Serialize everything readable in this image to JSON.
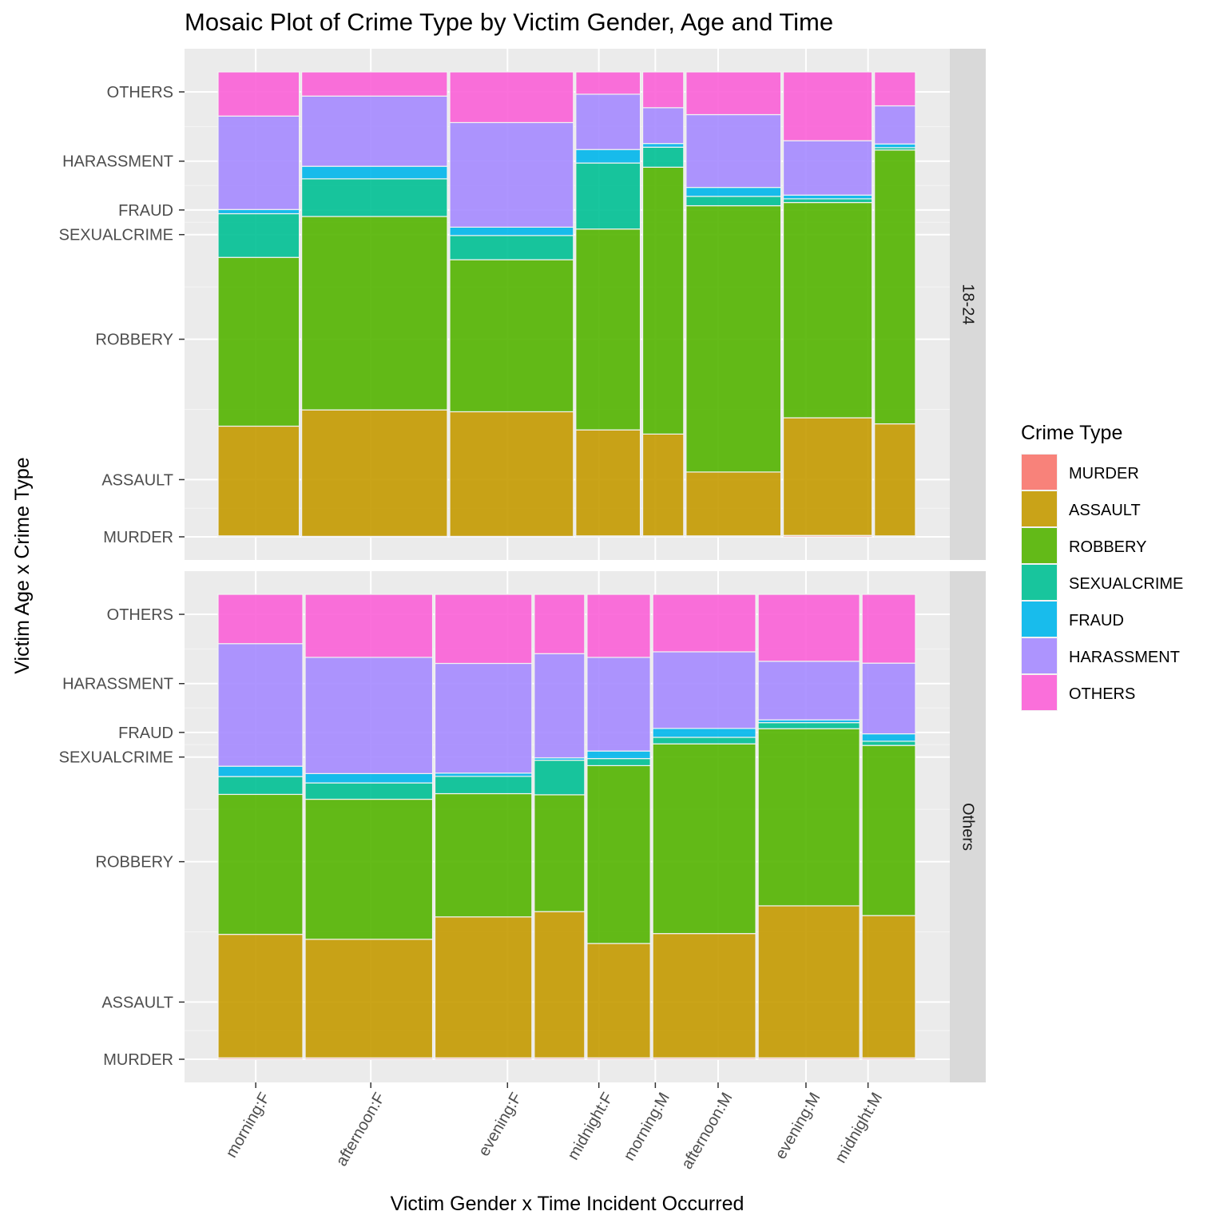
{
  "chart_data": {
    "type": "mosaic",
    "title": "Mosaic Plot of Crime Type by Victim Gender, Age and Time",
    "xlabel": "Victim Gender x Time Incident Occurred",
    "ylabel": "Victim Age x Crime Type",
    "legend": {
      "title": "Crime Type",
      "position": "right",
      "entries": [
        {
          "name": "MURDER",
          "color": "#F8766D"
        },
        {
          "name": "ASSAULT",
          "color": "#C49A00"
        },
        {
          "name": "ROBBERY",
          "color": "#53B400"
        },
        {
          "name": "SEXUALCRIME",
          "color": "#00C094"
        },
        {
          "name": "FRAUD",
          "color": "#00B6EB"
        },
        {
          "name": "HARASSMENT",
          "color": "#A58AFF"
        },
        {
          "name": "OTHERS",
          "color": "#FB61D7"
        }
      ]
    },
    "crime_types": [
      "MURDER",
      "ASSAULT",
      "ROBBERY",
      "SEXUALCRIME",
      "FRAUD",
      "HARASSMENT",
      "OTHERS"
    ],
    "y_tick_labels": [
      "MURDER",
      "ASSAULT",
      "ROBBERY",
      "SEXUALCRIME",
      "FRAUD",
      "HARASSMENT",
      "OTHERS"
    ],
    "panels": [
      {
        "label": "18-24",
        "y_ticks": [
          0.0,
          0.123,
          0.425,
          0.65,
          0.703,
          0.808,
          0.957
        ],
        "x_ticks": [
          {
            "label": "morning:F",
            "pos": 0.054
          },
          {
            "label": "afternoon:F",
            "pos": 0.219
          },
          {
            "label": "evening:F",
            "pos": 0.415
          },
          {
            "label": "midnight:F",
            "pos": 0.546
          },
          {
            "label": "morning:M",
            "pos": 0.627
          },
          {
            "label": "afternoon:M",
            "pos": 0.717
          },
          {
            "label": "evening:M",
            "pos": 0.843
          },
          {
            "label": "midnight:M",
            "pos": 0.932
          }
        ],
        "columns": [
          {
            "group": "morning:F",
            "width": 0.107,
            "props": [
              0.002,
              0.236,
              0.363,
              0.094,
              0.009,
              0.201,
              0.095
            ]
          },
          {
            "group": "afternoon:F",
            "width": 0.192,
            "props": [
              0.001,
              0.272,
              0.416,
              0.081,
              0.027,
              0.151,
              0.052
            ]
          },
          {
            "group": "evening:F",
            "width": 0.163,
            "props": [
              0.001,
              0.268,
              0.327,
              0.052,
              0.018,
              0.225,
              0.109
            ]
          },
          {
            "group": "midnight:F",
            "width": 0.085,
            "props": [
              0.002,
              0.228,
              0.432,
              0.142,
              0.029,
              0.119,
              0.048
            ]
          },
          {
            "group": "morning:M",
            "width": 0.054,
            "props": [
              0.002,
              0.219,
              0.574,
              0.043,
              0.008,
              0.077,
              0.077
            ]
          },
          {
            "group": "afternoon:M",
            "width": 0.125,
            "props": [
              0.002,
              0.136,
              0.567,
              0.02,
              0.019,
              0.155,
              0.091
            ]
          },
          {
            "group": "evening:M",
            "width": 0.117,
            "props": [
              0.003,
              0.253,
              0.463,
              0.008,
              0.008,
              0.117,
              0.148
            ]
          },
          {
            "group": "midnight:M",
            "width": 0.054,
            "props": [
              0.002,
              0.241,
              0.589,
              0.005,
              0.008,
              0.082,
              0.073
            ]
          }
        ]
      },
      {
        "label": "Others",
        "y_ticks": [
          0.0,
          0.123,
          0.425,
          0.65,
          0.703,
          0.808,
          0.957
        ],
        "x_ticks": [
          {
            "label": "morning:F",
            "pos": 0.054
          },
          {
            "label": "afternoon:F",
            "pos": 0.219
          },
          {
            "label": "evening:F",
            "pos": 0.415
          },
          {
            "label": "midnight:F",
            "pos": 0.546
          },
          {
            "label": "morning:M",
            "pos": 0.627
          },
          {
            "label": "afternoon:M",
            "pos": 0.717
          },
          {
            "label": "evening:M",
            "pos": 0.843
          },
          {
            "label": "midnight:M",
            "pos": 0.932
          }
        ],
        "columns": [
          {
            "group": "morning:F",
            "width": 0.111,
            "props": [
              0.003,
              0.263,
              0.298,
              0.038,
              0.022,
              0.261,
              0.105
            ]
          },
          {
            "group": "afternoon:F",
            "width": 0.167,
            "props": [
              0.003,
              0.254,
              0.3,
              0.035,
              0.02,
              0.249,
              0.135
            ]
          },
          {
            "group": "evening:F",
            "width": 0.127,
            "props": [
              0.003,
              0.302,
              0.264,
              0.037,
              0.007,
              0.235,
              0.148
            ]
          },
          {
            "group": "midnight:F",
            "width": 0.066,
            "props": [
              0.003,
              0.313,
              0.25,
              0.074,
              0.005,
              0.223,
              0.127
            ]
          },
          {
            "group": "morning:M",
            "width": 0.083,
            "props": [
              0.003,
              0.243,
              0.378,
              0.015,
              0.016,
              0.199,
              0.134
            ]
          },
          {
            "group": "afternoon:M",
            "width": 0.135,
            "props": [
              0.003,
              0.266,
              0.406,
              0.014,
              0.019,
              0.164,
              0.123
            ]
          },
          {
            "group": "evening:M",
            "width": 0.133,
            "props": [
              0.003,
              0.327,
              0.381,
              0.013,
              0.006,
              0.126,
              0.144
            ]
          },
          {
            "group": "midnight:M",
            "width": 0.07,
            "props": [
              0.003,
              0.306,
              0.366,
              0.009,
              0.016,
              0.152,
              0.148
            ]
          }
        ]
      }
    ]
  }
}
